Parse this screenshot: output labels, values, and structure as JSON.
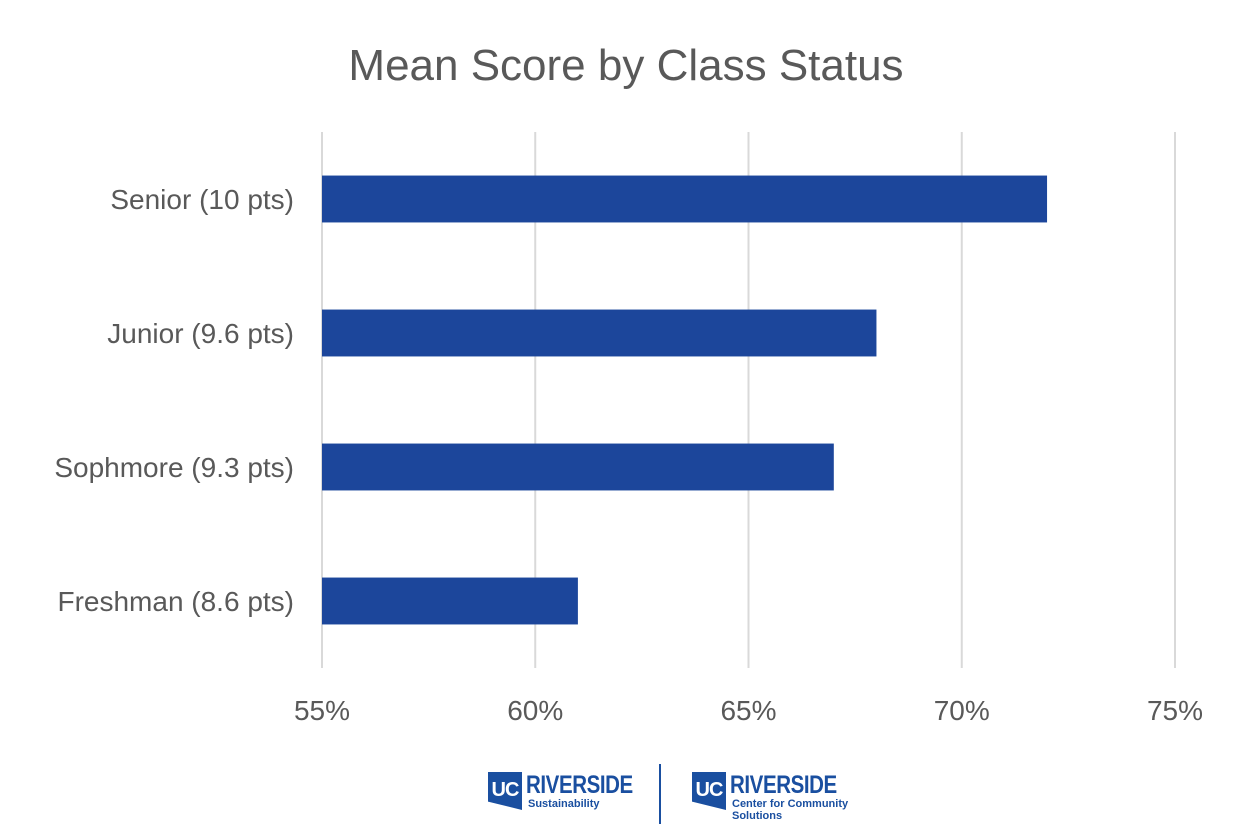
{
  "chart_data": {
    "type": "bar",
    "orientation": "horizontal",
    "title": "Mean Score by Class Status",
    "categories": [
      "Senior (10 pts)",
      "Junior (9.6 pts)",
      "Sophmore (9.3 pts)",
      "Freshman (8.6 pts)"
    ],
    "values": [
      72,
      68,
      67,
      61
    ],
    "xlim": [
      55,
      75
    ],
    "xticks": [
      55,
      60,
      65,
      70,
      75
    ],
    "xtick_labels": [
      "55%",
      "60%",
      "65%",
      "70%",
      "75%"
    ],
    "xlabel": "",
    "ylabel": "",
    "grid": "vertical",
    "legend": "none",
    "bar_color": "#1c469b"
  },
  "logos": {
    "left": {
      "mark": "UC",
      "name": "RIVERSIDE",
      "subtitle": "Sustainability"
    },
    "right": {
      "mark": "UC",
      "name": "RIVERSIDE",
      "subtitle_line1": "Center for Community",
      "subtitle_line2": "Solutions"
    },
    "brand_blue": "#1a4fa0",
    "brand_gold": "#f1ab00"
  }
}
